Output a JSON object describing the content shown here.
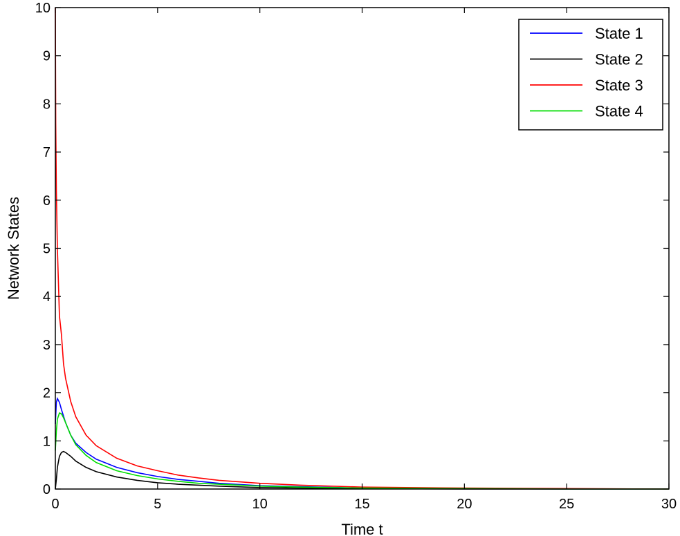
{
  "chart_data": {
    "type": "line",
    "title": "",
    "xlabel": "Time t",
    "ylabel": "Network States",
    "xlim": [
      0,
      30
    ],
    "ylim": [
      0,
      10
    ],
    "xticks": [
      0,
      5,
      10,
      15,
      20,
      25,
      30
    ],
    "yticks": [
      0,
      1,
      2,
      3,
      4,
      5,
      6,
      7,
      8,
      9,
      10
    ],
    "grid": false,
    "legend_position": "top-right",
    "series": [
      {
        "name": "State 1",
        "color": "#0000ff",
        "x": [
          0,
          0.05,
          0.1,
          0.2,
          0.3,
          0.5,
          0.75,
          1,
          1.5,
          2,
          3,
          4,
          5,
          6,
          7,
          8,
          10,
          12,
          15,
          20,
          25,
          30
        ],
        "y": [
          1.35,
          1.8,
          1.88,
          1.8,
          1.65,
          1.38,
          1.12,
          0.95,
          0.76,
          0.62,
          0.45,
          0.34,
          0.26,
          0.2,
          0.16,
          0.12,
          0.07,
          0.05,
          0.02,
          0.01,
          0,
          0
        ]
      },
      {
        "name": "State 2",
        "color": "#000000",
        "x": [
          0,
          0.05,
          0.1,
          0.2,
          0.3,
          0.4,
          0.5,
          0.75,
          1,
          1.5,
          2,
          3,
          4,
          5,
          6,
          7,
          8,
          10,
          12,
          15,
          20,
          25,
          30
        ],
        "y": [
          0,
          0.2,
          0.45,
          0.68,
          0.76,
          0.78,
          0.76,
          0.68,
          0.58,
          0.45,
          0.36,
          0.25,
          0.18,
          0.13,
          0.1,
          0.08,
          0.06,
          0.03,
          0.02,
          0.01,
          0,
          0,
          0
        ]
      },
      {
        "name": "State 3",
        "color": "#ff0000",
        "x": [
          0,
          0.02,
          0.05,
          0.1,
          0.15,
          0.2,
          0.3,
          0.4,
          0.5,
          0.75,
          1,
          1.5,
          2,
          3,
          4,
          5,
          6,
          7,
          8,
          10,
          12,
          15,
          20,
          25,
          30
        ],
        "y": [
          10,
          7.6,
          6.2,
          5.0,
          4.3,
          3.6,
          3.2,
          2.6,
          2.3,
          1.82,
          1.5,
          1.12,
          0.9,
          0.64,
          0.48,
          0.38,
          0.29,
          0.23,
          0.18,
          0.12,
          0.08,
          0.04,
          0.02,
          0.01,
          0
        ]
      },
      {
        "name": "State 4",
        "color": "#00dd00",
        "x": [
          0,
          0.05,
          0.1,
          0.2,
          0.3,
          0.4,
          0.5,
          0.75,
          1,
          1.5,
          2,
          3,
          4,
          5,
          6,
          7,
          8,
          10,
          12,
          15,
          20,
          25,
          30
        ],
        "y": [
          0.8,
          1.2,
          1.45,
          1.58,
          1.56,
          1.48,
          1.38,
          1.12,
          0.92,
          0.7,
          0.55,
          0.38,
          0.28,
          0.21,
          0.16,
          0.12,
          0.1,
          0.06,
          0.04,
          0.02,
          0.01,
          0,
          0
        ]
      }
    ]
  }
}
